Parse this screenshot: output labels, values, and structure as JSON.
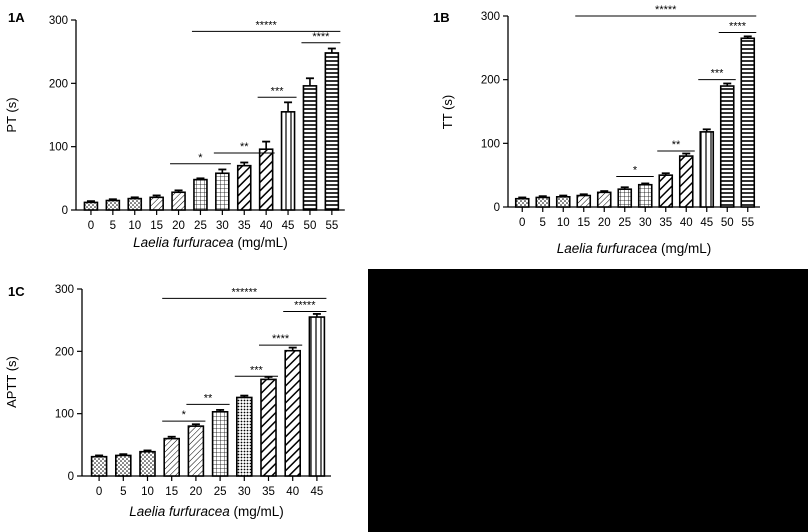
{
  "colors": {
    "ink": "#000000",
    "background": "#ffffff",
    "blank_panel": "#000000"
  },
  "chart_data": [
    {
      "type": "bar",
      "panel_label": "1A",
      "ylabel": "PT  (s)",
      "xlabel_italic": "Laelia furfuracea",
      "xlabel_unit": " (mg/mL)",
      "ylim": [
        0,
        300
      ],
      "yticks": [
        "0",
        "100",
        "200",
        "300"
      ],
      "categories": [
        "0",
        "5",
        "10",
        "15",
        "20",
        "25",
        "30",
        "35",
        "40",
        "45",
        "50",
        "55"
      ],
      "values": [
        12,
        15,
        18,
        20,
        28,
        48,
        58,
        70,
        96,
        155,
        196,
        248
      ],
      "errors": [
        2,
        2,
        2,
        3,
        3,
        2,
        6,
        5,
        12,
        15,
        12,
        7
      ],
      "patterns": [
        "dots",
        "dots",
        "dots",
        "diag-thin",
        "diag-thin",
        "grid",
        "grid",
        "diag-thick",
        "diag-thick",
        "vertical",
        "horizontal",
        "horizontal"
      ],
      "significance": [
        {
          "label": "*",
          "from": "20",
          "to": "30",
          "y": 73
        },
        {
          "label": "**",
          "from": "30",
          "to": "40",
          "y": 90
        },
        {
          "label": "***",
          "from": "40",
          "to": "45",
          "y": 178
        },
        {
          "label": "****",
          "from": "50",
          "to": "55",
          "y": 264
        },
        {
          "label": "*****",
          "from": "25",
          "to": "55",
          "y": 282
        }
      ]
    },
    {
      "type": "bar",
      "panel_label": "1B",
      "ylabel": "TT  (s)",
      "xlabel_italic": "Laelia furfuracea",
      "xlabel_unit": " (mg/mL)",
      "ylim": [
        0,
        300
      ],
      "yticks": [
        "0",
        "100",
        "200",
        "300"
      ],
      "categories": [
        "0",
        "5",
        "10",
        "15",
        "20",
        "25",
        "30",
        "35",
        "40",
        "45",
        "50",
        "55"
      ],
      "values": [
        13,
        15,
        16,
        18,
        23,
        28,
        35,
        50,
        80,
        118,
        190,
        265
      ],
      "errors": [
        2,
        2,
        2,
        2,
        2,
        3,
        2,
        3,
        4,
        4,
        4,
        3
      ],
      "patterns": [
        "dots",
        "dots",
        "dots",
        "diag-thin",
        "diag-thin",
        "grid",
        "grid",
        "diag-thick",
        "diag-thick",
        "vertical",
        "horizontal",
        "horizontal"
      ],
      "significance": [
        {
          "label": "*",
          "from": "25",
          "to": "30",
          "y": 48
        },
        {
          "label": "**",
          "from": "35",
          "to": "40",
          "y": 88
        },
        {
          "label": "***",
          "from": "45",
          "to": "50",
          "y": 200
        },
        {
          "label": "****",
          "from": "50",
          "to": "55",
          "y": 274
        },
        {
          "label": "*****",
          "from": "15",
          "to": "55",
          "y": 300
        }
      ]
    },
    {
      "type": "bar",
      "panel_label": "1C",
      "ylabel": "APTT  (s)",
      "xlabel_italic": "Laelia furfuracea",
      "xlabel_unit": " (mg/mL)",
      "ylim": [
        0,
        300
      ],
      "yticks": [
        "0",
        "100",
        "200",
        "300"
      ],
      "categories": [
        "0",
        "5",
        "10",
        "15",
        "20",
        "25",
        "30",
        "35",
        "40",
        "45"
      ],
      "values": [
        31,
        33,
        39,
        60,
        80,
        103,
        126,
        155,
        201,
        255
      ],
      "errors": [
        2,
        2,
        2,
        3,
        3,
        3,
        3,
        4,
        5,
        5
      ],
      "patterns": [
        "dots",
        "dots",
        "dots",
        "diag-thin",
        "diag-thin",
        "grid",
        "dots-dense",
        "diag-thick",
        "diag-thick",
        "vertical"
      ],
      "significance": [
        {
          "label": "*",
          "from": "15",
          "to": "20",
          "y": 88
        },
        {
          "label": "**",
          "from": "20",
          "to": "25",
          "y": 115
        },
        {
          "label": "***",
          "from": "30",
          "to": "35",
          "y": 160
        },
        {
          "label": "****",
          "from": "35",
          "to": "40",
          "y": 210
        },
        {
          "label": "*****",
          "from": "40",
          "to": "45",
          "y": 264
        },
        {
          "label": "******",
          "from": "15",
          "to": "45",
          "y": 285
        }
      ]
    }
  ]
}
